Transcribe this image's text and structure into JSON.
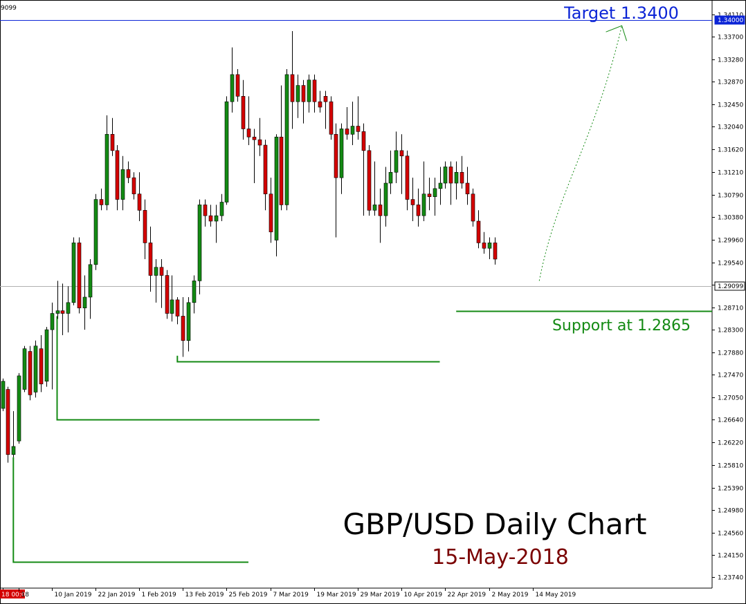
{
  "chart_data": {
    "type": "candlestick",
    "symbol_fragment": "9099",
    "title": "GBP/USD Daily Chart",
    "subtitle": "15-May-2018",
    "ylim": [
      1.2354,
      1.3431
    ],
    "yticks": [
      "1.34110",
      "1.33700",
      "1.33280",
      "1.32870",
      "1.32450",
      "1.32040",
      "1.31620",
      "1.31210",
      "1.30790",
      "1.30380",
      "1.29960",
      "1.29540",
      "1.29130",
      "1.28710",
      "1.28300",
      "1.27880",
      "1.27470",
      "1.27050",
      "1.26640",
      "1.26220",
      "1.25810",
      "1.25390",
      "1.24980",
      "1.24560",
      "1.24150",
      "1.23740"
    ],
    "xticks": [
      {
        "label": "18 00:00",
        "i": 0
      },
      {
        "label": "18",
        "i": 3
      },
      {
        "label": "10 Jan 2019",
        "i": 9
      },
      {
        "label": "22 Jan 2019",
        "i": 17
      },
      {
        "label": "1 Feb 2019",
        "i": 25
      },
      {
        "label": "13 Feb 2019",
        "i": 33
      },
      {
        "label": "25 Feb 2019",
        "i": 41
      },
      {
        "label": "7 Mar 2019",
        "i": 49
      },
      {
        "label": "19 Mar 2019",
        "i": 57
      },
      {
        "label": "29 Mar 2019",
        "i": 65
      },
      {
        "label": "10 Apr 2019",
        "i": 73
      },
      {
        "label": "22 Apr 2019",
        "i": 81
      },
      {
        "label": "2 May 2019",
        "i": 89
      },
      {
        "label": "14 May 2019",
        "i": 97
      }
    ],
    "price_labels": [
      {
        "label": "1.34000",
        "price": 1.34,
        "bg": "#0b24d6"
      },
      {
        "label": "1.29099",
        "price": 1.29099,
        "bg": "#ffffff"
      }
    ],
    "lines": [
      {
        "name": "target-line",
        "price": 1.34,
        "from_i": -2,
        "to_i": 131,
        "color": "#0b24d6"
      },
      {
        "name": "current-price-line",
        "price": 1.29099,
        "from_i": -2,
        "to_i": 131,
        "color": "#b0b0b0"
      },
      {
        "name": "support-line",
        "price": 1.2865,
        "from_i": 83,
        "to_i": 131,
        "color": "#138a13"
      }
    ],
    "levels": [
      {
        "name": "level-1",
        "price": 1.2402,
        "from_i": 2,
        "to_i": 45,
        "anchor_price": 1.2595
      },
      {
        "name": "level-2",
        "price": 1.2664,
        "from_i": 10,
        "to_i": 58,
        "anchor_price": 1.2855
      },
      {
        "name": "level-3",
        "price": 1.2772,
        "from_i": 32,
        "to_i": 80,
        "anchor_price": 1.2782
      }
    ],
    "annotations": {
      "target": "Target 1.3400",
      "support": "Support at 1.2865"
    },
    "projection": {
      "from_i": 98.2,
      "from_price": 1.292,
      "to_i": 113.3,
      "to_price": 1.339
    },
    "colors": {
      "bull": "#138a13",
      "bear": "#d40000",
      "wick": "#000000",
      "target": "#0b24d6",
      "support": "#138a13",
      "subtitle": "#7a0000"
    },
    "candles": [
      {
        "o": 1.2685,
        "h": 1.274,
        "l": 1.268,
        "c": 1.2735
      },
      {
        "o": 1.272,
        "h": 1.2725,
        "l": 1.2585,
        "c": 1.26
      },
      {
        "o": 1.26,
        "h": 1.268,
        "l": 1.2595,
        "c": 1.2615
      },
      {
        "o": 1.2625,
        "h": 1.275,
        "l": 1.262,
        "c": 1.2745
      },
      {
        "o": 1.272,
        "h": 1.28,
        "l": 1.2715,
        "c": 1.2795
      },
      {
        "o": 1.279,
        "h": 1.28,
        "l": 1.27,
        "c": 1.271
      },
      {
        "o": 1.2715,
        "h": 1.281,
        "l": 1.2705,
        "c": 1.28
      },
      {
        "o": 1.2795,
        "h": 1.282,
        "l": 1.2715,
        "c": 1.273
      },
      {
        "o": 1.2735,
        "h": 1.2835,
        "l": 1.2725,
        "c": 1.283
      },
      {
        "o": 1.283,
        "h": 1.288,
        "l": 1.272,
        "c": 1.286
      },
      {
        "o": 1.286,
        "h": 1.292,
        "l": 1.285,
        "c": 1.2865
      },
      {
        "o": 1.2865,
        "h": 1.2915,
        "l": 1.282,
        "c": 1.286
      },
      {
        "o": 1.286,
        "h": 1.291,
        "l": 1.2825,
        "c": 1.288
      },
      {
        "o": 1.288,
        "h": 1.3,
        "l": 1.2875,
        "c": 1.299
      },
      {
        "o": 1.299,
        "h": 1.3,
        "l": 1.286,
        "c": 1.287
      },
      {
        "o": 1.287,
        "h": 1.293,
        "l": 1.283,
        "c": 1.289
      },
      {
        "o": 1.289,
        "h": 1.296,
        "l": 1.285,
        "c": 1.295
      },
      {
        "o": 1.295,
        "h": 1.308,
        "l": 1.294,
        "c": 1.307
      },
      {
        "o": 1.307,
        "h": 1.309,
        "l": 1.305,
        "c": 1.306
      },
      {
        "o": 1.306,
        "h": 1.3225,
        "l": 1.305,
        "c": 1.319
      },
      {
        "o": 1.319,
        "h": 1.322,
        "l": 1.315,
        "c": 1.316
      },
      {
        "o": 1.316,
        "h": 1.317,
        "l": 1.305,
        "c": 1.307
      },
      {
        "o": 1.307,
        "h": 1.315,
        "l": 1.305,
        "c": 1.3125
      },
      {
        "o": 1.3125,
        "h": 1.314,
        "l": 1.31,
        "c": 1.311
      },
      {
        "o": 1.311,
        "h": 1.312,
        "l": 1.307,
        "c": 1.308
      },
      {
        "o": 1.308,
        "h": 1.312,
        "l": 1.303,
        "c": 1.305
      },
      {
        "o": 1.305,
        "h": 1.307,
        "l": 1.296,
        "c": 1.299
      },
      {
        "o": 1.299,
        "h": 1.302,
        "l": 1.29,
        "c": 1.293
      },
      {
        "o": 1.293,
        "h": 1.296,
        "l": 1.288,
        "c": 1.2945
      },
      {
        "o": 1.2945,
        "h": 1.296,
        "l": 1.287,
        "c": 1.293
      },
      {
        "o": 1.293,
        "h": 1.294,
        "l": 1.285,
        "c": 1.286
      },
      {
        "o": 1.286,
        "h": 1.293,
        "l": 1.2845,
        "c": 1.2885
      },
      {
        "o": 1.2885,
        "h": 1.289,
        "l": 1.284,
        "c": 1.2855
      },
      {
        "o": 1.2855,
        "h": 1.289,
        "l": 1.278,
        "c": 1.281
      },
      {
        "o": 1.281,
        "h": 1.289,
        "l": 1.279,
        "c": 1.288
      },
      {
        "o": 1.288,
        "h": 1.293,
        "l": 1.286,
        "c": 1.292
      },
      {
        "o": 1.292,
        "h": 1.307,
        "l": 1.2895,
        "c": 1.306
      },
      {
        "o": 1.306,
        "h": 1.307,
        "l": 1.302,
        "c": 1.304
      },
      {
        "o": 1.304,
        "h": 1.306,
        "l": 1.302,
        "c": 1.303
      },
      {
        "o": 1.303,
        "h": 1.306,
        "l": 1.299,
        "c": 1.304
      },
      {
        "o": 1.304,
        "h": 1.308,
        "l": 1.303,
        "c": 1.3065
      },
      {
        "o": 1.3065,
        "h": 1.326,
        "l": 1.306,
        "c": 1.325
      },
      {
        "o": 1.325,
        "h": 1.335,
        "l": 1.323,
        "c": 1.33
      },
      {
        "o": 1.33,
        "h": 1.331,
        "l": 1.325,
        "c": 1.326
      },
      {
        "o": 1.326,
        "h": 1.329,
        "l": 1.318,
        "c": 1.32
      },
      {
        "o": 1.32,
        "h": 1.326,
        "l": 1.317,
        "c": 1.3185
      },
      {
        "o": 1.3185,
        "h": 1.32,
        "l": 1.31,
        "c": 1.318
      },
      {
        "o": 1.318,
        "h": 1.322,
        "l": 1.315,
        "c": 1.317
      },
      {
        "o": 1.317,
        "h": 1.318,
        "l": 1.305,
        "c": 1.308
      },
      {
        "o": 1.308,
        "h": 1.311,
        "l": 1.299,
        "c": 1.301
      },
      {
        "o": 1.2995,
        "h": 1.319,
        "l": 1.2965,
        "c": 1.3185
      },
      {
        "o": 1.3185,
        "h": 1.328,
        "l": 1.305,
        "c": 1.306
      },
      {
        "o": 1.306,
        "h": 1.331,
        "l": 1.305,
        "c": 1.33
      },
      {
        "o": 1.33,
        "h": 1.338,
        "l": 1.32,
        "c": 1.325
      },
      {
        "o": 1.325,
        "h": 1.33,
        "l": 1.322,
        "c": 1.328
      },
      {
        "o": 1.328,
        "h": 1.329,
        "l": 1.321,
        "c": 1.325
      },
      {
        "o": 1.325,
        "h": 1.33,
        "l": 1.323,
        "c": 1.329
      },
      {
        "o": 1.329,
        "h": 1.33,
        "l": 1.323,
        "c": 1.325
      },
      {
        "o": 1.325,
        "h": 1.327,
        "l": 1.323,
        "c": 1.324
      },
      {
        "o": 1.326,
        "h": 1.327,
        "l": 1.32,
        "c": 1.325
      },
      {
        "o": 1.325,
        "h": 1.326,
        "l": 1.318,
        "c": 1.319
      },
      {
        "o": 1.319,
        "h": 1.321,
        "l": 1.3,
        "c": 1.311
      },
      {
        "o": 1.311,
        "h": 1.321,
        "l": 1.308,
        "c": 1.32
      },
      {
        "o": 1.32,
        "h": 1.324,
        "l": 1.318,
        "c": 1.319
      },
      {
        "o": 1.319,
        "h": 1.325,
        "l": 1.317,
        "c": 1.3205
      },
      {
        "o": 1.3205,
        "h": 1.326,
        "l": 1.318,
        "c": 1.3195
      },
      {
        "o": 1.3195,
        "h": 1.321,
        "l": 1.304,
        "c": 1.316
      },
      {
        "o": 1.316,
        "h": 1.317,
        "l": 1.304,
        "c": 1.305
      },
      {
        "o": 1.305,
        "h": 1.314,
        "l": 1.304,
        "c": 1.306
      },
      {
        "o": 1.306,
        "h": 1.309,
        "l": 1.299,
        "c": 1.304
      },
      {
        "o": 1.304,
        "h": 1.313,
        "l": 1.302,
        "c": 1.31
      },
      {
        "o": 1.31,
        "h": 1.316,
        "l": 1.308,
        "c": 1.312
      },
      {
        "o": 1.312,
        "h": 1.3195,
        "l": 1.31,
        "c": 1.316
      },
      {
        "o": 1.316,
        "h": 1.319,
        "l": 1.308,
        "c": 1.315
      },
      {
        "o": 1.315,
        "h": 1.316,
        "l": 1.305,
        "c": 1.307
      },
      {
        "o": 1.307,
        "h": 1.311,
        "l": 1.303,
        "c": 1.306
      },
      {
        "o": 1.306,
        "h": 1.309,
        "l": 1.302,
        "c": 1.304
      },
      {
        "o": 1.304,
        "h": 1.314,
        "l": 1.303,
        "c": 1.308
      },
      {
        "o": 1.308,
        "h": 1.311,
        "l": 1.305,
        "c": 1.3075
      },
      {
        "o": 1.3075,
        "h": 1.311,
        "l": 1.304,
        "c": 1.309
      },
      {
        "o": 1.309,
        "h": 1.313,
        "l": 1.306,
        "c": 1.31
      },
      {
        "o": 1.31,
        "h": 1.314,
        "l": 1.309,
        "c": 1.313
      },
      {
        "o": 1.313,
        "h": 1.314,
        "l": 1.306,
        "c": 1.31
      },
      {
        "o": 1.31,
        "h": 1.314,
        "l": 1.307,
        "c": 1.312
      },
      {
        "o": 1.312,
        "h": 1.315,
        "l": 1.309,
        "c": 1.31
      },
      {
        "o": 1.31,
        "h": 1.313,
        "l": 1.306,
        "c": 1.308
      },
      {
        "o": 1.308,
        "h": 1.309,
        "l": 1.302,
        "c": 1.303
      },
      {
        "o": 1.303,
        "h": 1.305,
        "l": 1.298,
        "c": 1.299
      },
      {
        "o": 1.299,
        "h": 1.301,
        "l": 1.297,
        "c": 1.298
      },
      {
        "o": 1.298,
        "h": 1.3,
        "l": 1.296,
        "c": 1.299
      },
      {
        "o": 1.299,
        "h": 1.3,
        "l": 1.295,
        "c": 1.296
      }
    ]
  }
}
